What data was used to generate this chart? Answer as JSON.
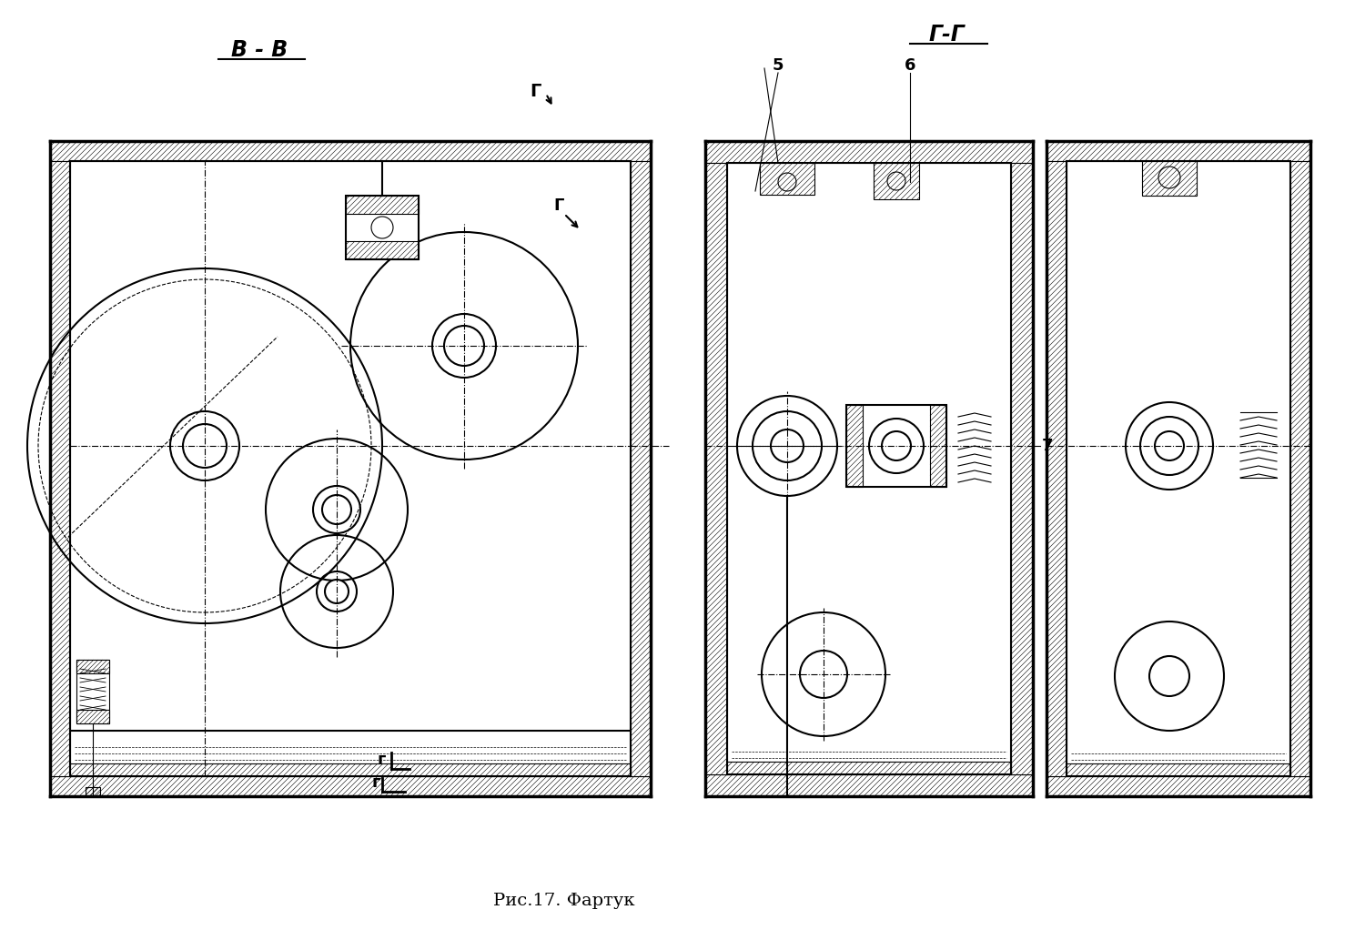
{
  "background_color": "#ffffff",
  "line_color": "#000000",
  "title_text": "Рис.17. Фартук",
  "label_vv": "В - В",
  "label_gg": "Г-Г",
  "fig_width": 15.0,
  "fig_height": 10.44
}
